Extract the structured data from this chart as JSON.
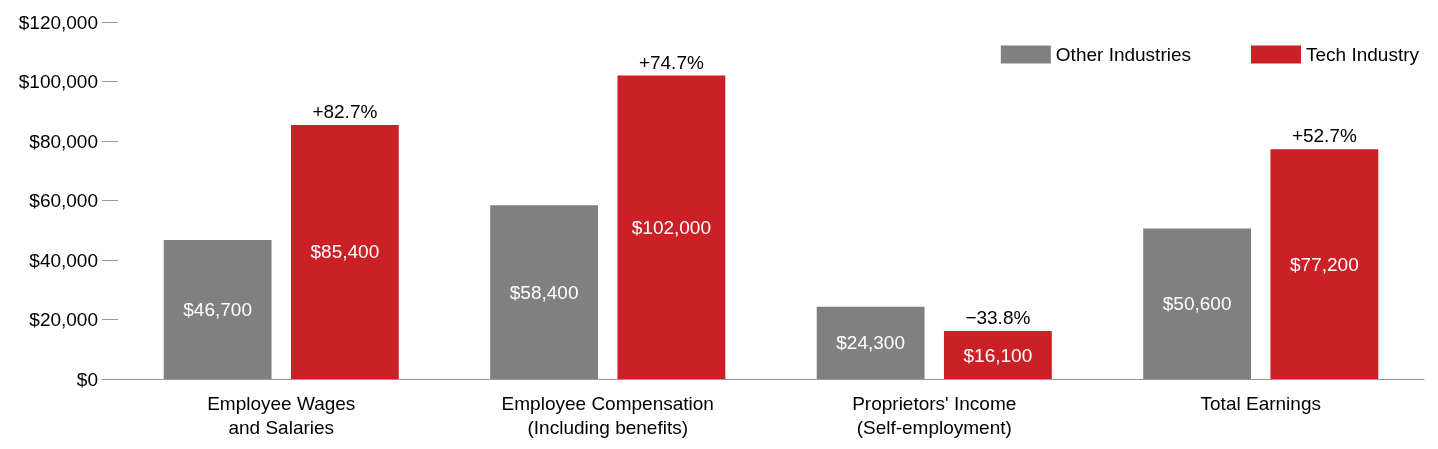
{
  "chart_data": {
    "type": "bar",
    "categories": [
      "Employee Wages\nand Salaries",
      "Employee Compensation\n(Including benefits)",
      "Proprietors' Income\n(Self-employment)",
      "Total Earnings"
    ],
    "series": [
      {
        "name": "Other Industries",
        "color": "#808080",
        "values": [
          46700,
          58400,
          24300,
          50600
        ],
        "value_labels": [
          "$46,700",
          "$58,400",
          "$24,300",
          "$50,600"
        ]
      },
      {
        "name": "Tech Industry",
        "color": "#cc2027",
        "values": [
          85400,
          102000,
          16100,
          77200
        ],
        "value_labels": [
          "$85,400",
          "$102,000",
          "$16,100",
          "$77,200"
        ]
      }
    ],
    "ylim": [
      0,
      120000
    ],
    "yticks": [
      {
        "value": 0,
        "label": "$0"
      },
      {
        "value": 20000,
        "label": "$20,000"
      },
      {
        "value": 40000,
        "label": "$40,000"
      },
      {
        "value": 60000,
        "label": "$60,000"
      },
      {
        "value": 80000,
        "label": "$80,000"
      },
      {
        "value": 100000,
        "label": "$100,000"
      },
      {
        "value": 120000,
        "label": "$120,000"
      }
    ],
    "annotations": [
      "+82.7%",
      "+74.7%",
      "−33.8%",
      "+52.7%"
    ],
    "grid": false,
    "legend": "top right"
  }
}
